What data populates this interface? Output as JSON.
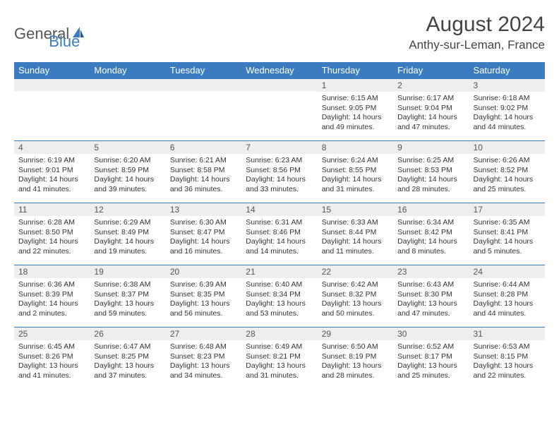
{
  "logo": {
    "general": "General",
    "blue": "Blue"
  },
  "title": "August 2024",
  "location": "Anthy-sur-Leman, France",
  "colors": {
    "header_bg": "#3b7bbf",
    "header_text": "#ffffff",
    "daynum_bg": "#eceef0",
    "border": "#3b7bbf",
    "body_bg": "#ffffff",
    "text": "#333333"
  },
  "weekdays": [
    "Sunday",
    "Monday",
    "Tuesday",
    "Wednesday",
    "Thursday",
    "Friday",
    "Saturday"
  ],
  "weeks": [
    [
      null,
      null,
      null,
      null,
      {
        "n": "1",
        "sr": "6:15 AM",
        "ss": "9:05 PM",
        "dl": "14 hours and 49 minutes."
      },
      {
        "n": "2",
        "sr": "6:17 AM",
        "ss": "9:04 PM",
        "dl": "14 hours and 47 minutes."
      },
      {
        "n": "3",
        "sr": "6:18 AM",
        "ss": "9:02 PM",
        "dl": "14 hours and 44 minutes."
      }
    ],
    [
      {
        "n": "4",
        "sr": "6:19 AM",
        "ss": "9:01 PM",
        "dl": "14 hours and 41 minutes."
      },
      {
        "n": "5",
        "sr": "6:20 AM",
        "ss": "8:59 PM",
        "dl": "14 hours and 39 minutes."
      },
      {
        "n": "6",
        "sr": "6:21 AM",
        "ss": "8:58 PM",
        "dl": "14 hours and 36 minutes."
      },
      {
        "n": "7",
        "sr": "6:23 AM",
        "ss": "8:56 PM",
        "dl": "14 hours and 33 minutes."
      },
      {
        "n": "8",
        "sr": "6:24 AM",
        "ss": "8:55 PM",
        "dl": "14 hours and 31 minutes."
      },
      {
        "n": "9",
        "sr": "6:25 AM",
        "ss": "8:53 PM",
        "dl": "14 hours and 28 minutes."
      },
      {
        "n": "10",
        "sr": "6:26 AM",
        "ss": "8:52 PM",
        "dl": "14 hours and 25 minutes."
      }
    ],
    [
      {
        "n": "11",
        "sr": "6:28 AM",
        "ss": "8:50 PM",
        "dl": "14 hours and 22 minutes."
      },
      {
        "n": "12",
        "sr": "6:29 AM",
        "ss": "8:49 PM",
        "dl": "14 hours and 19 minutes."
      },
      {
        "n": "13",
        "sr": "6:30 AM",
        "ss": "8:47 PM",
        "dl": "14 hours and 16 minutes."
      },
      {
        "n": "14",
        "sr": "6:31 AM",
        "ss": "8:46 PM",
        "dl": "14 hours and 14 minutes."
      },
      {
        "n": "15",
        "sr": "6:33 AM",
        "ss": "8:44 PM",
        "dl": "14 hours and 11 minutes."
      },
      {
        "n": "16",
        "sr": "6:34 AM",
        "ss": "8:42 PM",
        "dl": "14 hours and 8 minutes."
      },
      {
        "n": "17",
        "sr": "6:35 AM",
        "ss": "8:41 PM",
        "dl": "14 hours and 5 minutes."
      }
    ],
    [
      {
        "n": "18",
        "sr": "6:36 AM",
        "ss": "8:39 PM",
        "dl": "14 hours and 2 minutes."
      },
      {
        "n": "19",
        "sr": "6:38 AM",
        "ss": "8:37 PM",
        "dl": "13 hours and 59 minutes."
      },
      {
        "n": "20",
        "sr": "6:39 AM",
        "ss": "8:35 PM",
        "dl": "13 hours and 56 minutes."
      },
      {
        "n": "21",
        "sr": "6:40 AM",
        "ss": "8:34 PM",
        "dl": "13 hours and 53 minutes."
      },
      {
        "n": "22",
        "sr": "6:42 AM",
        "ss": "8:32 PM",
        "dl": "13 hours and 50 minutes."
      },
      {
        "n": "23",
        "sr": "6:43 AM",
        "ss": "8:30 PM",
        "dl": "13 hours and 47 minutes."
      },
      {
        "n": "24",
        "sr": "6:44 AM",
        "ss": "8:28 PM",
        "dl": "13 hours and 44 minutes."
      }
    ],
    [
      {
        "n": "25",
        "sr": "6:45 AM",
        "ss": "8:26 PM",
        "dl": "13 hours and 41 minutes."
      },
      {
        "n": "26",
        "sr": "6:47 AM",
        "ss": "8:25 PM",
        "dl": "13 hours and 37 minutes."
      },
      {
        "n": "27",
        "sr": "6:48 AM",
        "ss": "8:23 PM",
        "dl": "13 hours and 34 minutes."
      },
      {
        "n": "28",
        "sr": "6:49 AM",
        "ss": "8:21 PM",
        "dl": "13 hours and 31 minutes."
      },
      {
        "n": "29",
        "sr": "6:50 AM",
        "ss": "8:19 PM",
        "dl": "13 hours and 28 minutes."
      },
      {
        "n": "30",
        "sr": "6:52 AM",
        "ss": "8:17 PM",
        "dl": "13 hours and 25 minutes."
      },
      {
        "n": "31",
        "sr": "6:53 AM",
        "ss": "8:15 PM",
        "dl": "13 hours and 22 minutes."
      }
    ]
  ],
  "labels": {
    "sunrise": "Sunrise: ",
    "sunset": "Sunset: ",
    "daylight": "Daylight: "
  }
}
